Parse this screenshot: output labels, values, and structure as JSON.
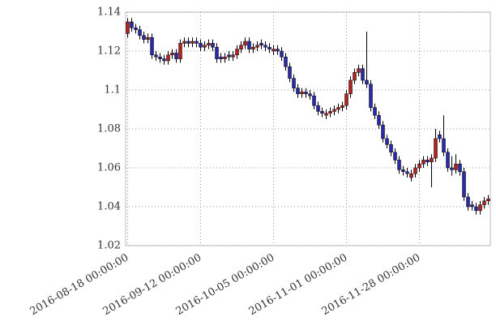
{
  "chart_data": {
    "type": "candlestick",
    "up_color": "#b22222",
    "down_color": "#2a2aa8",
    "grid": true,
    "x": [
      0,
      1,
      2,
      3,
      4,
      5,
      6,
      7,
      8,
      9,
      10,
      11,
      12,
      13,
      14,
      15,
      16,
      17,
      18,
      19,
      20,
      21,
      22,
      23,
      24,
      25,
      26,
      27,
      28,
      29,
      30,
      31,
      32,
      33,
      34,
      35,
      36,
      37,
      38,
      39,
      40,
      41,
      42,
      43,
      44,
      45,
      46,
      47,
      48,
      49,
      50,
      51,
      52,
      53,
      54,
      55,
      56,
      57,
      58,
      59,
      60,
      61,
      62,
      63,
      64,
      65,
      66,
      67,
      68,
      69,
      70,
      71,
      72,
      73,
      74,
      75,
      76,
      77,
      78,
      79,
      80,
      81,
      82,
      83,
      84,
      85,
      86,
      87,
      88,
      89
    ],
    "open": [
      1.129,
      1.135,
      1.132,
      1.131,
      1.128,
      1.126,
      1.127,
      1.118,
      1.117,
      1.116,
      1.115,
      1.118,
      1.119,
      1.116,
      1.124,
      1.125,
      1.124,
      1.125,
      1.124,
      1.122,
      1.123,
      1.124,
      1.122,
      1.117,
      1.116,
      1.118,
      1.117,
      1.118,
      1.121,
      1.123,
      1.125,
      1.121,
      1.122,
      1.124,
      1.123,
      1.122,
      1.12,
      1.121,
      1.12,
      1.117,
      1.112,
      1.106,
      1.101,
      1.098,
      1.099,
      1.098,
      1.097,
      1.092,
      1.089,
      1.087,
      1.088,
      1.089,
      1.09,
      1.091,
      1.092,
      1.098,
      1.105,
      1.109,
      1.111,
      1.105,
      1.103,
      1.091,
      1.087,
      1.082,
      1.075,
      1.072,
      1.068,
      1.064,
      1.059,
      1.058,
      1.055,
      1.057,
      1.06,
      1.062,
      1.064,
      1.063,
      1.065,
      1.077,
      1.075,
      1.068,
      1.06,
      1.059,
      1.062,
      1.058,
      1.045,
      1.041,
      1.04,
      1.038,
      1.041,
      1.043
    ],
    "high": [
      1.137,
      1.137,
      1.134,
      1.133,
      1.13,
      1.129,
      1.129,
      1.12,
      1.119,
      1.118,
      1.12,
      1.121,
      1.121,
      1.126,
      1.127,
      1.127,
      1.127,
      1.127,
      1.126,
      1.125,
      1.126,
      1.126,
      1.124,
      1.119,
      1.119,
      1.12,
      1.12,
      1.123,
      1.125,
      1.127,
      1.127,
      1.124,
      1.125,
      1.126,
      1.125,
      1.124,
      1.123,
      1.123,
      1.122,
      1.119,
      1.114,
      1.108,
      1.103,
      1.101,
      1.101,
      1.1,
      1.099,
      1.094,
      1.091,
      1.09,
      1.091,
      1.092,
      1.093,
      1.094,
      1.1,
      1.107,
      1.111,
      1.113,
      1.113,
      1.13,
      1.105,
      1.093,
      1.089,
      1.084,
      1.077,
      1.074,
      1.07,
      1.066,
      1.061,
      1.06,
      1.059,
      1.062,
      1.064,
      1.066,
      1.066,
      1.067,
      1.08,
      1.079,
      1.087,
      1.07,
      1.066,
      1.067,
      1.064,
      1.06,
      1.047,
      1.043,
      1.042,
      1.043,
      1.045,
      1.046
    ],
    "low": [
      1.127,
      1.13,
      1.129,
      1.126,
      1.124,
      1.124,
      1.116,
      1.115,
      1.114,
      1.113,
      1.113,
      1.116,
      1.114,
      1.114,
      1.122,
      1.122,
      1.122,
      1.122,
      1.12,
      1.12,
      1.121,
      1.12,
      1.114,
      1.114,
      1.114,
      1.115,
      1.115,
      1.116,
      1.119,
      1.121,
      1.119,
      1.119,
      1.12,
      1.121,
      1.12,
      1.119,
      1.118,
      1.118,
      1.115,
      1.11,
      1.104,
      1.099,
      1.096,
      1.096,
      1.096,
      1.095,
      1.09,
      1.087,
      1.086,
      1.085,
      1.086,
      1.087,
      1.088,
      1.089,
      1.09,
      1.096,
      1.103,
      1.107,
      1.103,
      1.101,
      1.089,
      1.085,
      1.08,
      1.073,
      1.07,
      1.066,
      1.062,
      1.057,
      1.056,
      1.055,
      1.053,
      1.055,
      1.058,
      1.06,
      1.061,
      1.05,
      1.063,
      1.073,
      1.066,
      1.058,
      1.056,
      1.057,
      1.056,
      1.043,
      1.038,
      1.038,
      1.036,
      1.036,
      1.039,
      1.041
    ],
    "close": [
      1.135,
      1.132,
      1.131,
      1.128,
      1.126,
      1.127,
      1.118,
      1.117,
      1.116,
      1.115,
      1.118,
      1.119,
      1.116,
      1.124,
      1.125,
      1.124,
      1.125,
      1.124,
      1.122,
      1.123,
      1.124,
      1.122,
      1.116,
      1.116,
      1.117,
      1.117,
      1.118,
      1.121,
      1.123,
      1.125,
      1.121,
      1.122,
      1.123,
      1.123,
      1.122,
      1.121,
      1.121,
      1.12,
      1.117,
      1.112,
      1.106,
      1.101,
      1.098,
      1.099,
      1.098,
      1.097,
      1.092,
      1.089,
      1.088,
      1.088,
      1.089,
      1.09,
      1.091,
      1.092,
      1.098,
      1.105,
      1.109,
      1.111,
      1.105,
      1.103,
      1.091,
      1.087,
      1.082,
      1.075,
      1.072,
      1.068,
      1.064,
      1.059,
      1.058,
      1.057,
      1.057,
      1.06,
      1.062,
      1.064,
      1.063,
      1.065,
      1.075,
      1.075,
      1.068,
      1.06,
      1.059,
      1.062,
      1.058,
      1.045,
      1.04,
      1.04,
      1.038,
      1.041,
      1.043,
      1.044
    ],
    "xlim": [
      -0.5,
      89.5
    ],
    "xticks": [
      {
        "value": 0,
        "label": "2016-08-18 00:00:00"
      },
      {
        "value": 18,
        "label": "2016-09-12 00:00:00"
      },
      {
        "value": 36,
        "label": "2016-10-05 00:00:00"
      },
      {
        "value": 54,
        "label": "2016-11-01 00:00:00"
      },
      {
        "value": 72,
        "label": "2016-11-28 00:00:00"
      }
    ],
    "ylim": [
      1.02,
      1.14
    ],
    "yticks": [
      1.02,
      1.04,
      1.06,
      1.08,
      1.1,
      1.12,
      1.14
    ]
  }
}
